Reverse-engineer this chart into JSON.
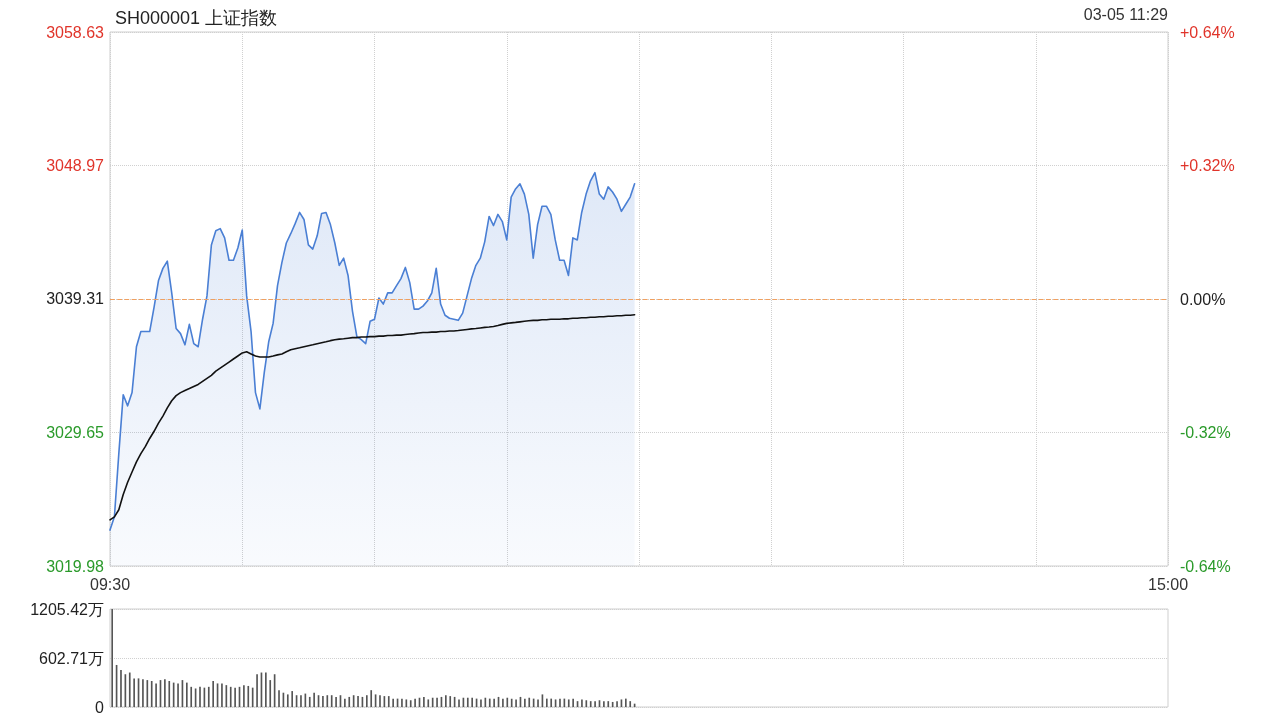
{
  "chart_data": [
    {
      "type": "line",
      "title": "SH000001 上证指数",
      "annotations": [
        "03-05 11:29"
      ],
      "categories": [
        "09:30",
        null,
        null,
        null,
        null,
        null,
        null,
        null,
        null,
        null,
        null,
        null,
        null,
        null,
        null,
        null,
        null,
        null,
        null,
        null,
        null,
        null,
        null,
        null,
        null,
        null,
        null,
        null,
        null,
        null,
        null,
        null,
        null,
        null,
        null,
        null,
        null,
        null,
        null,
        null,
        null,
        null,
        null,
        null,
        null,
        null,
        null,
        null,
        null,
        null,
        null,
        null,
        null,
        null,
        null,
        null,
        null,
        null,
        null,
        null,
        null,
        null,
        null,
        null,
        null,
        null,
        null,
        null,
        null,
        null,
        null,
        null,
        null,
        null,
        null,
        null,
        null,
        null,
        null,
        null,
        null,
        null,
        null,
        null,
        null,
        null,
        null,
        null,
        null,
        null,
        null,
        null,
        null,
        null,
        null,
        null,
        null,
        null,
        null,
        null,
        null,
        null,
        null,
        null,
        null,
        null,
        null,
        null,
        null,
        null,
        null,
        null,
        null,
        null,
        null,
        null,
        null,
        null,
        null,
        null,
        null,
        null,
        null,
        null,
        null,
        null,
        null,
        null,
        null,
        null,
        null,
        null,
        null,
        null,
        null,
        null,
        null,
        null,
        null,
        null,
        null,
        null,
        null,
        null,
        null,
        null,
        null,
        null,
        null,
        null,
        null,
        null,
        null,
        null,
        null,
        null,
        null,
        null,
        null,
        null,
        null,
        null,
        null,
        null,
        null,
        null,
        null,
        null,
        null,
        null,
        null,
        null,
        null,
        null,
        null,
        null,
        null,
        null,
        null,
        null,
        null,
        null,
        null,
        null,
        null,
        null,
        null,
        null,
        null,
        null,
        null,
        null,
        null,
        null,
        null,
        null,
        null,
        null,
        null,
        null,
        null,
        null,
        null,
        null,
        null,
        null,
        null,
        null,
        null,
        null,
        null,
        null,
        null,
        null,
        null,
        null,
        null,
        null,
        null,
        null,
        null,
        null,
        null,
        null,
        null,
        null,
        null,
        null,
        null,
        null,
        null,
        null,
        null,
        null,
        null,
        null,
        null,
        null,
        null,
        null,
        "15:00"
      ],
      "series": [
        {
          "type": "area",
          "color": "#4a7fd4",
          "values": [
            3022.58,
            3023.54,
            3028.11,
            3032.38,
            3031.57,
            3032.53,
            3035.85,
            3036.95,
            3036.95,
            3036.95,
            3038.72,
            3040.64,
            3041.52,
            3042.04,
            3039.75,
            3037.17,
            3036.8,
            3035.99,
            3037.47,
            3036.07,
            3035.85,
            3037.84,
            3039.53,
            3043.22,
            3044.25,
            3044.4,
            3043.73,
            3042.11,
            3042.11,
            3043.0,
            3044.3,
            3039.53,
            3036.95,
            3032.53,
            3031.35,
            3034.0,
            3036.21,
            3037.54,
            3040.27,
            3041.96,
            3043.36,
            3044.03,
            3044.76,
            3045.57,
            3045.06,
            3043.22,
            3042.92,
            3043.88,
            3045.5,
            3045.57,
            3044.69,
            3043.36,
            3041.74,
            3042.26,
            3041.01,
            3038.43,
            3036.58,
            3036.36,
            3036.07,
            3037.69,
            3037.84,
            3039.38,
            3038.94,
            3039.75,
            3039.75,
            3040.27,
            3040.78,
            3041.59,
            3040.49,
            3038.57,
            3038.57,
            3038.79,
            3039.16,
            3039.75,
            3041.52,
            3038.94,
            3038.13,
            3037.91,
            3037.84,
            3037.76,
            3038.28,
            3039.53,
            3040.78,
            3041.74,
            3042.26,
            3043.44,
            3045.28,
            3044.62,
            3045.43,
            3044.91,
            3043.58,
            3046.68,
            3047.27,
            3047.64,
            3046.9,
            3045.43,
            3042.26,
            3044.69,
            3046.02,
            3046.02,
            3045.43,
            3043.58,
            3042.11,
            3042.11,
            3041.01,
            3043.73,
            3043.58,
            3045.57,
            3046.9,
            3047.86,
            3048.45,
            3046.9,
            3046.53,
            3047.42,
            3047.05,
            3046.53,
            3045.65,
            3046.16,
            3046.68,
            3047.64,
            null,
            null,
            null,
            null,
            null,
            null,
            null,
            null,
            null,
            null,
            null,
            null,
            null,
            null,
            null,
            null,
            null,
            null,
            null,
            null,
            null,
            null,
            null,
            null,
            null,
            null,
            null,
            null,
            null,
            null,
            null,
            null,
            null,
            null,
            null,
            null,
            null,
            null,
            null,
            null,
            null,
            null,
            null,
            null,
            null,
            null,
            null,
            null,
            null,
            null,
            null,
            null,
            null,
            null,
            null,
            null,
            null,
            null,
            null,
            null,
            null,
            null,
            null,
            null,
            null,
            null,
            null,
            null,
            null,
            null,
            null,
            null,
            null,
            null,
            null,
            null,
            null,
            null,
            null,
            null,
            null,
            null,
            null,
            null,
            null,
            null,
            null,
            null,
            null,
            null,
            null,
            null,
            null,
            null,
            null,
            null,
            null,
            null,
            null,
            null,
            null,
            null,
            null,
            null,
            null,
            null,
            null,
            null,
            null,
            null,
            null,
            null,
            null,
            null,
            null,
            null,
            null,
            null,
            null,
            null,
            null
          ]
        },
        {
          "type": "line",
          "color": "#111111",
          "values": [
            3023.32,
            3023.54,
            3024.05,
            3025.16,
            3026.04,
            3026.78,
            3027.52,
            3028.11,
            3028.62,
            3029.21,
            3029.73,
            3030.32,
            3030.83,
            3031.42,
            3031.94,
            3032.31,
            3032.53,
            3032.68,
            3032.82,
            3032.97,
            3033.12,
            3033.34,
            3033.56,
            3033.78,
            3034.08,
            3034.3,
            3034.52,
            3034.74,
            3034.96,
            3035.18,
            3035.4,
            3035.48,
            3035.33,
            3035.18,
            3035.11,
            3035.11,
            3035.11,
            3035.18,
            3035.26,
            3035.33,
            3035.48,
            3035.63,
            3035.7,
            3035.77,
            3035.85,
            3035.92,
            3035.99,
            3036.07,
            3036.14,
            3036.21,
            3036.29,
            3036.36,
            3036.4,
            3036.43,
            3036.47,
            3036.51,
            3036.51,
            3036.55,
            3036.55,
            3036.58,
            3036.58,
            3036.62,
            3036.62,
            3036.66,
            3036.66,
            3036.69,
            3036.69,
            3036.73,
            3036.77,
            3036.8,
            3036.84,
            3036.88,
            3036.88,
            3036.91,
            3036.91,
            3036.95,
            3036.95,
            3036.99,
            3036.99,
            3037.02,
            3037.06,
            3037.1,
            3037.14,
            3037.17,
            3037.21,
            3037.25,
            3037.28,
            3037.32,
            3037.39,
            3037.47,
            3037.54,
            3037.58,
            3037.61,
            3037.65,
            3037.69,
            3037.73,
            3037.76,
            3037.76,
            3037.8,
            3037.8,
            3037.84,
            3037.84,
            3037.84,
            3037.87,
            3037.87,
            3037.91,
            3037.91,
            3037.95,
            3037.95,
            3037.98,
            3037.98,
            3038.02,
            3038.02,
            3038.06,
            3038.06,
            3038.09,
            3038.09,
            3038.13,
            3038.13,
            3038.17,
            null,
            null,
            null,
            null,
            null,
            null,
            null,
            null,
            null,
            null,
            null,
            null,
            null,
            null,
            null,
            null,
            null,
            null,
            null,
            null,
            null,
            null,
            null,
            null,
            null,
            null,
            null,
            null,
            null,
            null,
            null,
            null,
            null,
            null,
            null,
            null,
            null,
            null,
            null,
            null,
            null,
            null,
            null,
            null,
            null,
            null,
            null,
            null,
            null,
            null,
            null,
            null,
            null,
            null,
            null,
            null,
            null,
            null,
            null,
            null,
            null,
            null,
            null,
            null,
            null,
            null,
            null,
            null,
            null,
            null,
            null,
            null,
            null,
            null,
            null,
            null,
            null,
            null,
            null,
            null,
            null,
            null,
            null,
            null,
            null,
            null,
            null,
            null,
            null,
            null,
            null,
            null,
            null,
            null,
            null,
            null,
            null,
            null,
            null,
            null,
            null,
            null,
            null,
            null,
            null,
            null,
            null,
            null,
            null,
            null,
            null,
            null,
            null,
            null,
            null,
            null,
            null,
            null,
            null,
            null,
            null
          ]
        }
      ],
      "ylim": [
        3019.98,
        3058.63
      ],
      "yticks": [
        3019.98,
        3029.65,
        3039.31,
        3048.97,
        3058.63
      ],
      "y2lim": [
        -0.64,
        0.64
      ],
      "y2ticks": [
        {
          "value": -0.64,
          "label": "-0.64%"
        },
        {
          "value": -0.32,
          "label": "-0.32%"
        },
        {
          "value": 0,
          "label": "0.00%"
        },
        {
          "value": 0.32,
          "label": "+0.32%"
        },
        {
          "value": 0.64,
          "label": "+0.64%"
        }
      ],
      "ref_lines": [
        {
          "axis": "y",
          "value": 3039.31,
          "color": "#f0a060",
          "line_style": "dashed"
        }
      ],
      "grid": true,
      "marker": "none",
      "line_style": "solid"
    },
    {
      "type": "bar",
      "color": "#555555",
      "categories": [
        null,
        null,
        null,
        null,
        null,
        null,
        null,
        null,
        null,
        null,
        null,
        null,
        null,
        null,
        null,
        null,
        null,
        null,
        null,
        null,
        null,
        null,
        null,
        null,
        null,
        null,
        null,
        null,
        null,
        null,
        null,
        null,
        null,
        null,
        null,
        null,
        null,
        null,
        null,
        null,
        null,
        null,
        null,
        null,
        null,
        null,
        null,
        null,
        null,
        null,
        null,
        null,
        null,
        null,
        null,
        null,
        null,
        null,
        null,
        null,
        null,
        null,
        null,
        null,
        null,
        null,
        null,
        null,
        null,
        null,
        null,
        null,
        null,
        null,
        null,
        null,
        null,
        null,
        null,
        null,
        null,
        null,
        null,
        null,
        null,
        null,
        null,
        null,
        null,
        null,
        null,
        null,
        null,
        null,
        null,
        null,
        null,
        null,
        null,
        null,
        null,
        null,
        null,
        null,
        null,
        null,
        null,
        null,
        null,
        null,
        null,
        null,
        null,
        null,
        null,
        null,
        null,
        null,
        null,
        null,
        null,
        null,
        null,
        null,
        null,
        null,
        null,
        null,
        null,
        null,
        null,
        null,
        null,
        null,
        null,
        null,
        null,
        null,
        null,
        null,
        null,
        null,
        null,
        null,
        null,
        null,
        null,
        null,
        null,
        null,
        null,
        null,
        null,
        null,
        null,
        null,
        null,
        null,
        null,
        null,
        null,
        null,
        null,
        null,
        null,
        null,
        null,
        null,
        null,
        null,
        null,
        null,
        null,
        null,
        null,
        null,
        null,
        null,
        null,
        null,
        null,
        null,
        null,
        null,
        null,
        null,
        null,
        null,
        null,
        null,
        null,
        null,
        null,
        null,
        null,
        null,
        null,
        null,
        null,
        null,
        null,
        null,
        null,
        null,
        null,
        null,
        null,
        null,
        null,
        null,
        null,
        null,
        null,
        null,
        null,
        null,
        null,
        null,
        null,
        null,
        null,
        null,
        null,
        null,
        null,
        null,
        null,
        null,
        null,
        null,
        null,
        null,
        null,
        null,
        null,
        null,
        null,
        null,
        null,
        null,
        null
      ],
      "values": [
        1205,
        517,
        455,
        403,
        424,
        352,
        352,
        341,
        331,
        320,
        290,
        331,
        341,
        320,
        300,
        290,
        331,
        300,
        248,
        228,
        248,
        238,
        248,
        320,
        290,
        290,
        269,
        248,
        238,
        248,
        269,
        259,
        238,
        403,
        424,
        424,
        331,
        403,
        207,
        176,
        155,
        196,
        145,
        145,
        165,
        124,
        176,
        145,
        134,
        145,
        145,
        124,
        145,
        103,
        124,
        145,
        134,
        124,
        145,
        207,
        155,
        145,
        134,
        134,
        103,
        103,
        103,
        93,
        83,
        103,
        114,
        124,
        93,
        114,
        114,
        124,
        145,
        134,
        124,
        93,
        114,
        114,
        114,
        103,
        93,
        114,
        103,
        103,
        124,
        103,
        114,
        103,
        93,
        124,
        103,
        114,
        103,
        93,
        155,
        103,
        103,
        93,
        103,
        103,
        93,
        103,
        72,
        93,
        83,
        72,
        72,
        83,
        72,
        72,
        62,
        72,
        93,
        103,
        72,
        41,
        null,
        null,
        null,
        null,
        null,
        null,
        null,
        null,
        null,
        null,
        null,
        null,
        null,
        null,
        null,
        null,
        null,
        null,
        null,
        null,
        null,
        null,
        null,
        null,
        null,
        null,
        null,
        null,
        null,
        null,
        null,
        null,
        null,
        null,
        null,
        null,
        null,
        null,
        null,
        null,
        null,
        null,
        null,
        null,
        null,
        null,
        null,
        null,
        null,
        null,
        null,
        null,
        null,
        null,
        null,
        null,
        null,
        null,
        null,
        null,
        null,
        null,
        null,
        null,
        null,
        null,
        null,
        null,
        null,
        null,
        null,
        null,
        null,
        null,
        null,
        null,
        null,
        null,
        null,
        null,
        null,
        null,
        null,
        null,
        null,
        null,
        null,
        null,
        null,
        null,
        null,
        null,
        null,
        null,
        null,
        null,
        null,
        null,
        null,
        null,
        null,
        null,
        null,
        null,
        null,
        null,
        null,
        null,
        null,
        null,
        null,
        null,
        null,
        null,
        null,
        null,
        null,
        null,
        null,
        null,
        null
      ],
      "ylim": [
        0,
        1205.42
      ],
      "yticks": [
        0,
        {
          "value": 602.71,
          "label": "602.71万"
        },
        {
          "value": 1205.42,
          "label": "1205.42万"
        }
      ],
      "grid": "y"
    }
  ]
}
